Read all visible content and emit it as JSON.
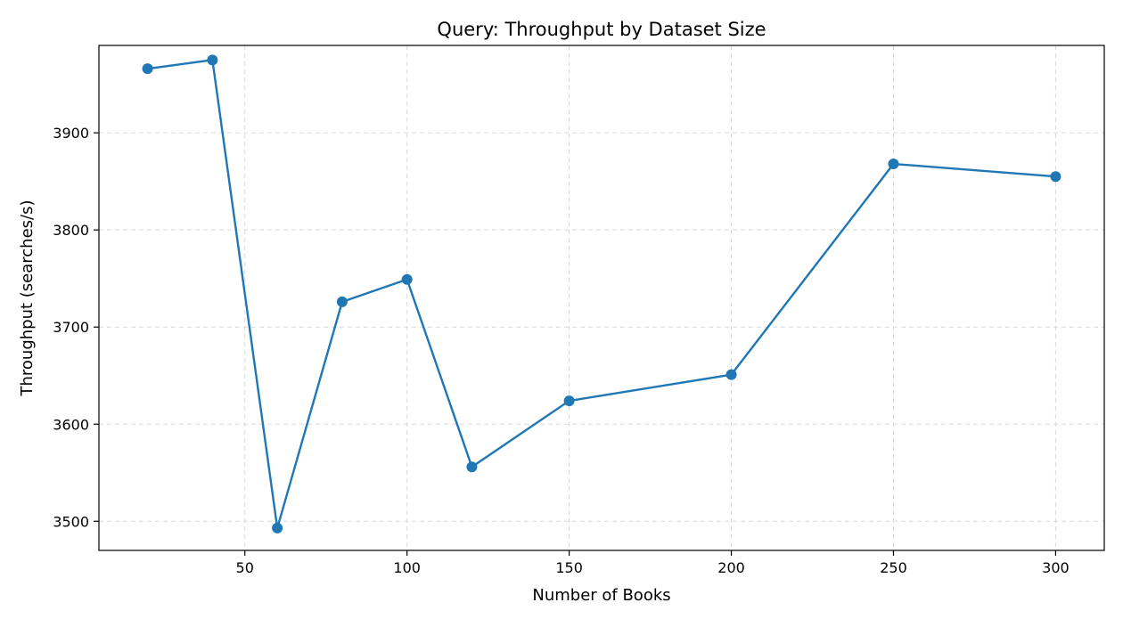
{
  "chart_data": {
    "type": "line",
    "title": "Query: Throughput by Dataset Size",
    "xlabel": "Number of Books",
    "ylabel": "Throughput (searches/s)",
    "xlim": [
      5,
      315
    ],
    "ylim": [
      3470,
      3990
    ],
    "xticks": [
      50,
      100,
      150,
      200,
      250,
      300
    ],
    "yticks": [
      3500,
      3600,
      3700,
      3800,
      3900
    ],
    "grid": true,
    "series": [
      {
        "color": "#1f77b4",
        "marker": "circle",
        "points": [
          {
            "x": 20,
            "y": 3966
          },
          {
            "x": 40,
            "y": 3975
          },
          {
            "x": 60,
            "y": 3493
          },
          {
            "x": 80,
            "y": 3726
          },
          {
            "x": 100,
            "y": 3749
          },
          {
            "x": 120,
            "y": 3556
          },
          {
            "x": 150,
            "y": 3624
          },
          {
            "x": 200,
            "y": 3651
          },
          {
            "x": 250,
            "y": 3868
          },
          {
            "x": 300,
            "y": 3855
          }
        ]
      }
    ]
  }
}
